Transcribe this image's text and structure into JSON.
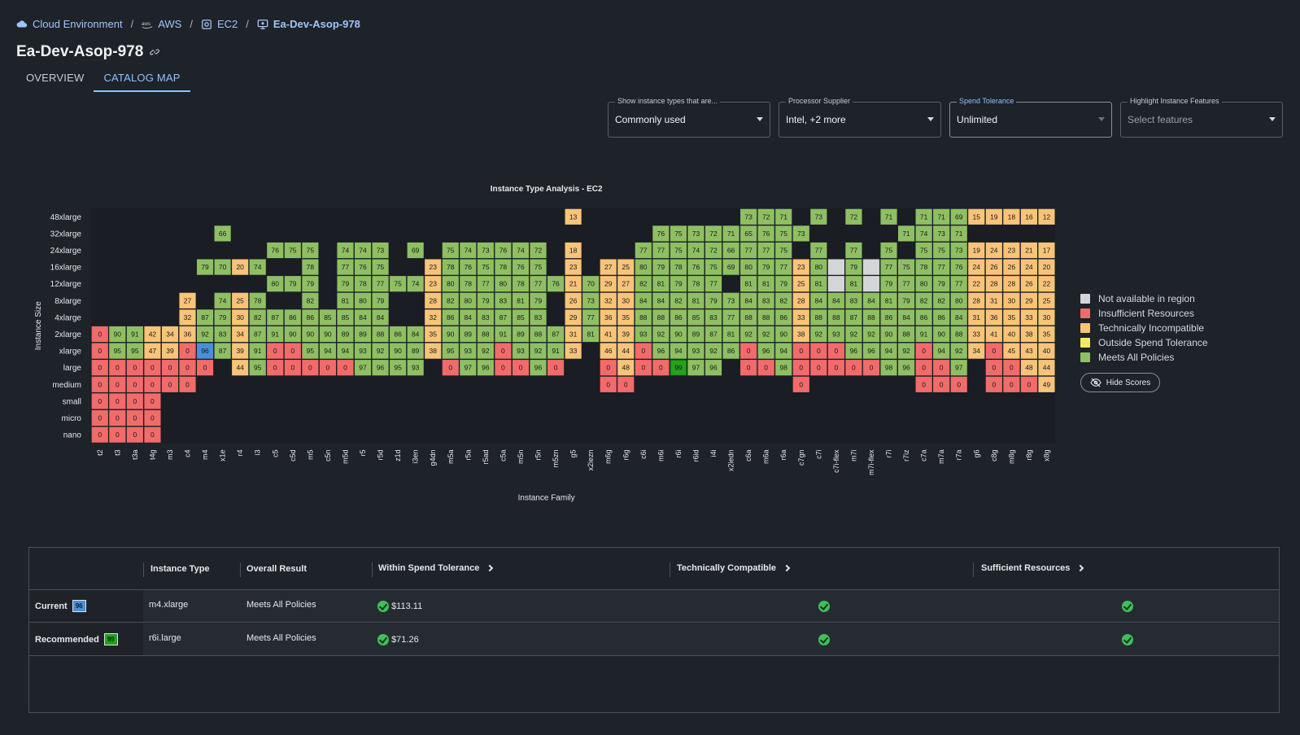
{
  "breadcrumb": [
    {
      "label": "Cloud Environment",
      "icon": "cloud-icon"
    },
    {
      "label": "AWS",
      "icon": "aws-icon"
    },
    {
      "label": "EC2",
      "icon": "chip-icon"
    },
    {
      "label": "Ea-Dev-Asop-978",
      "icon": "monitor-icon"
    }
  ],
  "page_title": "Ea-Dev-Asop-978",
  "tabs": [
    {
      "label": "OVERVIEW"
    },
    {
      "label": "CATALOG MAP"
    }
  ],
  "filters": [
    {
      "label": "Show instance types that are...",
      "value": "Commonly used"
    },
    {
      "label": "Processor Supplier",
      "value": "Intel, +2 more"
    },
    {
      "label": "Spend Tolerance",
      "value": "Unlimited"
    },
    {
      "label": "Highlight Instance Features",
      "placeholder": "Select features"
    }
  ],
  "colors": {
    "not_available": "#d3d5d8",
    "insufficient": "#f26b6b",
    "incompatible": "#f7c47a",
    "outside_spend": "#f2e96a",
    "meets": "#8fbf63",
    "current_highlight": "#4a8fd9",
    "recommended_highlight": "#22a31a"
  },
  "legend": [
    {
      "label": "Not available in region",
      "color_key": "not_available"
    },
    {
      "label": "Insufficient Resources",
      "color_key": "insufficient"
    },
    {
      "label": "Technically Incompatible",
      "color_key": "incompatible"
    },
    {
      "label": "Outside Spend Tolerance",
      "color_key": "outside_spend"
    },
    {
      "label": "Meets All Policies",
      "color_key": "meets"
    }
  ],
  "hide_scores_label": "Hide Scores",
  "chart_data": {
    "type": "heatmap",
    "title": "Instance Type Analysis - EC2",
    "xlabel": "Instance Family",
    "ylabel": "Instance Size",
    "legend_position": "right",
    "sizes": [
      "48xlarge",
      "32xlarge",
      "24xlarge",
      "16xlarge",
      "12xlarge",
      "8xlarge",
      "4xlarge",
      "2xlarge",
      "xlarge",
      "large",
      "medium",
      "small",
      "micro",
      "nano"
    ],
    "families": [
      "t2",
      "t3",
      "t3a",
      "t4g",
      "m3",
      "c4",
      "m4",
      "x1e",
      "r4",
      "i3",
      "c5",
      "c5d",
      "m5",
      "c5n",
      "m5d",
      "r5",
      "r5d",
      "z1d",
      "i3en",
      "g4dn",
      "m5a",
      "r5a",
      "r5ad",
      "c5a",
      "m5n",
      "r5n",
      "m5zn",
      "g5",
      "x2iezn",
      "m6g",
      "r6g",
      "c6i",
      "m6i",
      "r6i",
      "r6id",
      "i4i",
      "x2iedn",
      "c6a",
      "m6a",
      "r6a",
      "c7gn",
      "c7i",
      "c7i-flex",
      "m7i",
      "m7i-flex",
      "r7i",
      "r7iz",
      "c7a",
      "m7a",
      "r7a",
      "g6",
      "c8g",
      "m8g",
      "r8g",
      "x8g"
    ],
    "status_codes": {
      "N": "not_available",
      "I": "insufficient",
      "T": "incompatible",
      "S": "outside_spend",
      "M": "meets"
    },
    "rows": [
      [
        null,
        null,
        null,
        null,
        null,
        null,
        null,
        null,
        null,
        null,
        null,
        null,
        null,
        null,
        null,
        null,
        null,
        null,
        null,
        null,
        null,
        null,
        null,
        null,
        null,
        null,
        null,
        "T13",
        null,
        null,
        null,
        null,
        null,
        null,
        null,
        null,
        null,
        "M73",
        "M72",
        "M71",
        null,
        "M73",
        null,
        "M72",
        null,
        "M71",
        null,
        "M71",
        "M71",
        "M69",
        "T15",
        "T19",
        "T18",
        "T16",
        "T12"
      ],
      [
        null,
        null,
        null,
        null,
        null,
        null,
        null,
        "M66",
        null,
        null,
        null,
        null,
        null,
        null,
        null,
        null,
        null,
        null,
        null,
        null,
        null,
        null,
        null,
        null,
        null,
        null,
        null,
        null,
        null,
        null,
        null,
        null,
        "M76",
        "M75",
        "M73",
        "M72",
        "M71",
        "M65",
        "M76",
        "M75",
        "M73",
        null,
        null,
        null,
        null,
        null,
        "M71",
        "M74",
        "M73",
        "M71",
        null,
        null,
        null,
        null,
        null
      ],
      [
        null,
        null,
        null,
        null,
        null,
        null,
        null,
        null,
        null,
        null,
        "M76",
        "M75",
        "M75",
        null,
        "M74",
        "M74",
        "M73",
        null,
        "M69",
        null,
        "M75",
        "M74",
        "M73",
        "M76",
        "M74",
        "M72",
        null,
        "T18",
        null,
        null,
        null,
        "M77",
        "M77",
        "M75",
        "M74",
        "M72",
        "M66",
        "M77",
        "M77",
        "M75",
        null,
        "M77",
        null,
        "M77",
        null,
        "M75",
        null,
        "M75",
        "M75",
        "M73",
        "T19",
        "T24",
        "T23",
        "T21",
        "T17"
      ],
      [
        null,
        null,
        null,
        null,
        null,
        null,
        "M79",
        "M70",
        "T20",
        "M74",
        null,
        null,
        "M78",
        null,
        "M77",
        "M76",
        "M75",
        null,
        null,
        "T23",
        "M78",
        "M76",
        "M75",
        "M78",
        "M76",
        "M75",
        null,
        "T23",
        null,
        "T27",
        "T25",
        "M80",
        "M79",
        "M78",
        "M76",
        "M75",
        "M69",
        "M80",
        "M79",
        "M77",
        "T23",
        "M80",
        "N",
        "M79",
        "N",
        "M77",
        "M75",
        "M78",
        "M77",
        "M76",
        "T24",
        "T26",
        "T26",
        "T24",
        "T20"
      ],
      [
        null,
        null,
        null,
        null,
        null,
        null,
        null,
        null,
        null,
        null,
        "M80",
        "M79",
        "M79",
        null,
        "M79",
        "M78",
        "M77",
        "M75",
        "M74",
        "T23",
        "M80",
        "M78",
        "M77",
        "M80",
        "M78",
        "M77",
        "M76",
        "T21",
        "M70",
        "T29",
        "T27",
        "M82",
        "M81",
        "M79",
        "M78",
        "M77",
        null,
        "M81",
        "M81",
        "M79",
        "T25",
        "M81",
        "N",
        "M81",
        "N",
        "M79",
        "M77",
        "M80",
        "M79",
        "M77",
        "T22",
        "T28",
        "T28",
        "T26",
        "T22"
      ],
      [
        null,
        null,
        null,
        null,
        null,
        "T27",
        null,
        "M74",
        "T25",
        "M78",
        null,
        null,
        "M82",
        null,
        "M81",
        "M80",
        "M79",
        null,
        null,
        "T28",
        "M82",
        "M80",
        "M79",
        "M83",
        "M81",
        "M79",
        null,
        "T26",
        "M73",
        "T32",
        "T30",
        "M84",
        "M84",
        "M82",
        "M81",
        "M79",
        "M73",
        "M84",
        "M83",
        "M82",
        "T28",
        "M84",
        "M84",
        "M83",
        "M84",
        "M81",
        "M79",
        "M82",
        "M82",
        "M80",
        "T28",
        "T31",
        "T30",
        "T29",
        "T25"
      ],
      [
        null,
        null,
        null,
        null,
        null,
        "T32",
        "M87",
        "M79",
        "T30",
        "M82",
        "M87",
        "M86",
        "M86",
        "M85",
        "M85",
        "M84",
        "M84",
        null,
        null,
        "T32",
        "M86",
        "M84",
        "M83",
        "M87",
        "M85",
        "M83",
        null,
        "T29",
        "M77",
        "T36",
        "T35",
        "M88",
        "M88",
        "M86",
        "M85",
        "M83",
        "M77",
        "M88",
        "M88",
        "M86",
        "T33",
        "M88",
        "M88",
        "M87",
        "M88",
        "M86",
        "M84",
        "M86",
        "M86",
        "M84",
        "T31",
        "T36",
        "T35",
        "T33",
        "T30"
      ],
      [
        "I0",
        "M90",
        "M91",
        "T42",
        "T34",
        "T36",
        "M92",
        "M83",
        "T34",
        "M87",
        "M91",
        "M90",
        "M90",
        "M90",
        "M89",
        "M89",
        "M88",
        "M86",
        "M84",
        "T35",
        "M90",
        "M89",
        "M88",
        "M91",
        "M89",
        "M88",
        "M87",
        "T31",
        "M81",
        "T41",
        "T39",
        "M93",
        "M92",
        "M90",
        "M89",
        "M87",
        "M81",
        "M92",
        "M92",
        "M90",
        "T38",
        "M92",
        "M93",
        "M92",
        "M92",
        "M90",
        "M88",
        "M91",
        "M90",
        "M88",
        "T33",
        "T41",
        "T40",
        "T38",
        "T35"
      ],
      [
        "I0",
        "M95",
        "M95",
        "T47",
        "T39",
        "I0",
        "C96",
        "M87",
        "T39",
        "M91",
        "I0",
        "I0",
        "M95",
        "M94",
        "M94",
        "M93",
        "M92",
        "M90",
        "M89",
        "T38",
        "M95",
        "M93",
        "M92",
        "I0",
        "M93",
        "M92",
        "M91",
        "T33",
        null,
        "T46",
        "T44",
        "I0",
        "M96",
        "M94",
        "M93",
        "M92",
        "M86",
        "I0",
        "M96",
        "M94",
        "I0",
        "I0",
        "I0",
        "M96",
        "M96",
        "M94",
        "M92",
        "I0",
        "M94",
        "M92",
        "T34",
        "I0",
        "T45",
        "T43",
        "T40"
      ],
      [
        "I0",
        "I0",
        "I0",
        "I0",
        "I0",
        "I0",
        "I0",
        null,
        "T44",
        "M95",
        "I0",
        "I0",
        "I0",
        "I0",
        "I0",
        "M97",
        "M96",
        "M95",
        "M93",
        null,
        "I0",
        "M97",
        "M96",
        "I0",
        "I0",
        "M96",
        "I0",
        null,
        null,
        "I0",
        "T48",
        "I0",
        "I0",
        "R99",
        "M97",
        "M96",
        null,
        "I0",
        "I0",
        "M98",
        "I0",
        "I0",
        "I0",
        "I0",
        "I0",
        "M98",
        "M96",
        "I0",
        "I0",
        "M97",
        null,
        "I0",
        "I0",
        "T48",
        "T44"
      ],
      [
        "I0",
        "I0",
        "I0",
        "I0",
        "I0",
        "I0",
        null,
        null,
        null,
        null,
        null,
        null,
        null,
        null,
        null,
        null,
        null,
        null,
        null,
        null,
        null,
        null,
        null,
        null,
        null,
        null,
        null,
        null,
        null,
        "I0",
        "I0",
        null,
        null,
        null,
        null,
        null,
        null,
        null,
        null,
        null,
        "I0",
        null,
        null,
        null,
        null,
        null,
        null,
        "I0",
        "I0",
        "I0",
        null,
        "I0",
        "I0",
        "I0",
        "T49"
      ],
      [
        "I0",
        "I0",
        "I0",
        "I0",
        null,
        null,
        null,
        null,
        null,
        null,
        null,
        null,
        null,
        null,
        null,
        null,
        null,
        null,
        null,
        null,
        null,
        null,
        null,
        null,
        null,
        null,
        null,
        null,
        null,
        null,
        null,
        null,
        null,
        null,
        null,
        null,
        null,
        null,
        null,
        null,
        null,
        null,
        null,
        null,
        null,
        null,
        null,
        null,
        null,
        null,
        null,
        null,
        null,
        null,
        null
      ],
      [
        "I0",
        "I0",
        "I0",
        "I0",
        null,
        null,
        null,
        null,
        null,
        null,
        null,
        null,
        null,
        null,
        null,
        null,
        null,
        null,
        null,
        null,
        null,
        null,
        null,
        null,
        null,
        null,
        null,
        null,
        null,
        null,
        null,
        null,
        null,
        null,
        null,
        null,
        null,
        null,
        null,
        null,
        null,
        null,
        null,
        null,
        null,
        null,
        null,
        null,
        null,
        null,
        null,
        null,
        null,
        null,
        null
      ],
      [
        "I0",
        "I0",
        "I0",
        "I0",
        null,
        null,
        null,
        null,
        null,
        null,
        null,
        null,
        null,
        null,
        null,
        null,
        null,
        null,
        null,
        null,
        null,
        null,
        null,
        null,
        null,
        null,
        null,
        null,
        null,
        null,
        null,
        null,
        null,
        null,
        null,
        null,
        null,
        null,
        null,
        null,
        null,
        null,
        null,
        null,
        null,
        null,
        null,
        null,
        null,
        null,
        null,
        null,
        null,
        null,
        null
      ]
    ]
  },
  "table": {
    "headers": [
      "Instance Type",
      "Overall Result",
      "Within Spend Tolerance",
      "Technically Compatible",
      "Sufficient Resources"
    ],
    "rows": [
      {
        "label": "Current",
        "score": "96",
        "instance_type": "m4.xlarge",
        "result": "Meets All Policies",
        "spend": "$113.11",
        "compatible": true,
        "sufficient": true
      },
      {
        "label": "Recommended",
        "score": "99",
        "instance_type": "r6i.large",
        "result": "Meets All Policies",
        "spend": "$71.26",
        "compatible": true,
        "sufficient": true
      }
    ]
  }
}
